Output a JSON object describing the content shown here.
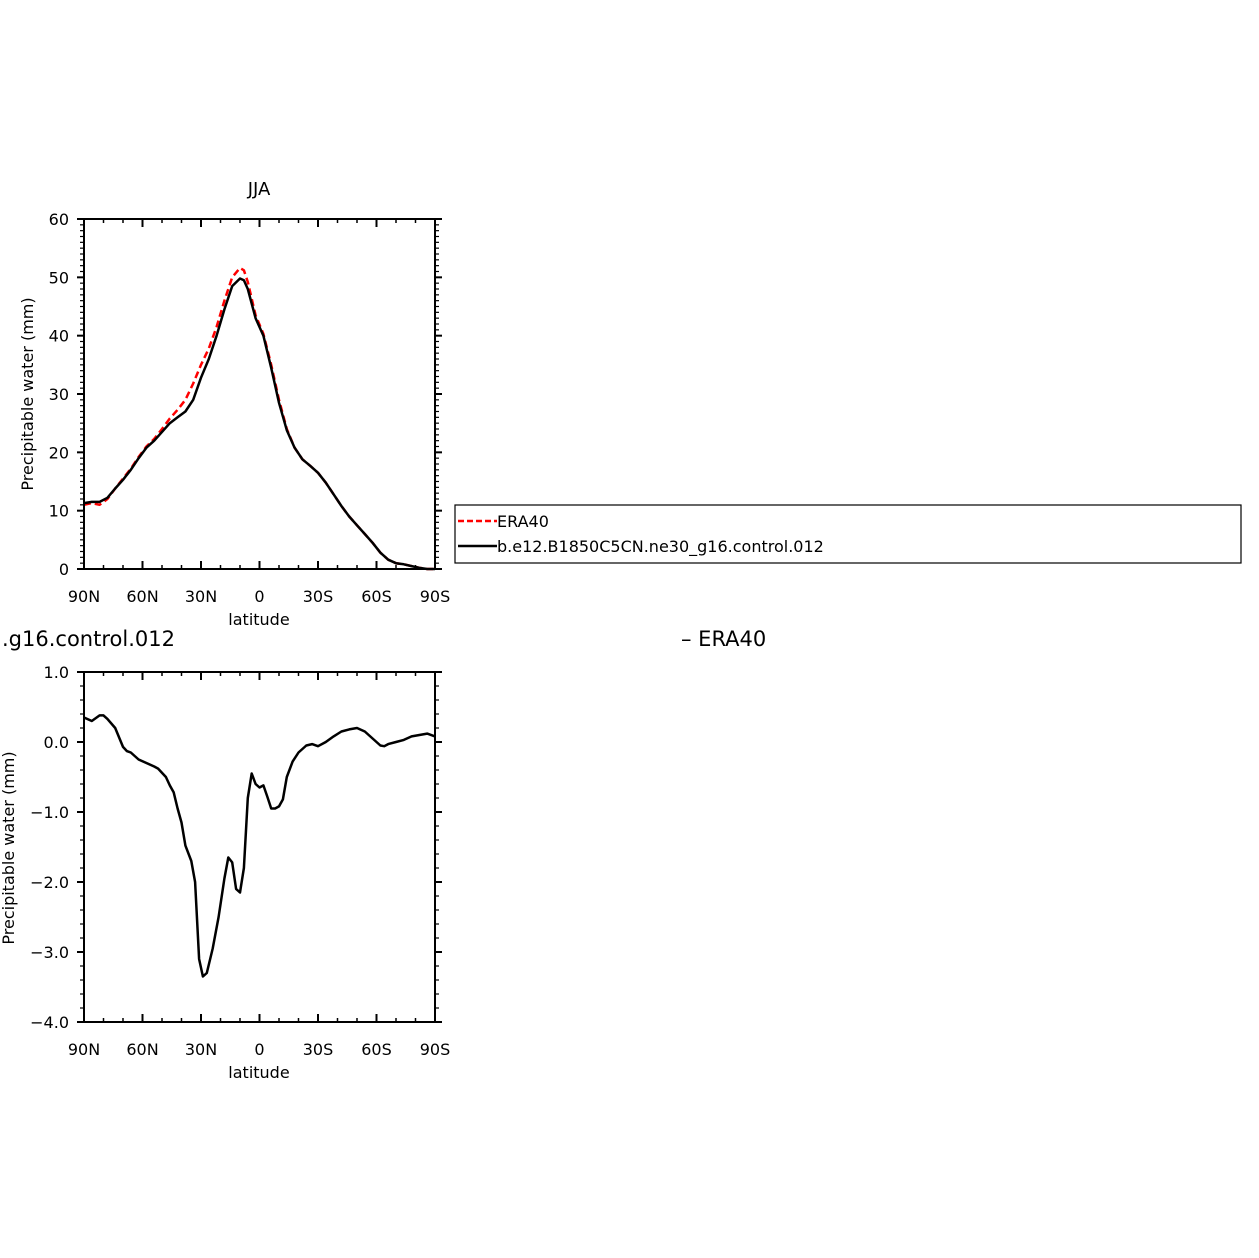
{
  "chart_data": [
    {
      "type": "line",
      "title": "JJA",
      "xlabel": "latitude",
      "ylabel": "Precipitable water (mm)",
      "xlim": [
        90,
        -90
      ],
      "ylim": [
        0,
        60
      ],
      "x_ticks": [
        90,
        60,
        30,
        0,
        -30,
        -60,
        -90
      ],
      "x_tick_labels": [
        "90N",
        "60N",
        "30N",
        "0",
        "30S",
        "60S",
        "90S"
      ],
      "y_ticks": [
        0,
        10,
        20,
        30,
        40,
        50,
        60
      ],
      "y_tick_labels": [
        "0",
        "10",
        "20",
        "30",
        "40",
        "50",
        "60"
      ],
      "grid": false,
      "legend_placement": "right",
      "series": [
        {
          "name": "ERA40",
          "color": "#ff0000",
          "dash": "dashed",
          "x": [
            90,
            86,
            82,
            78,
            74,
            70,
            66,
            62,
            58,
            54,
            50,
            46,
            42,
            38,
            34,
            30,
            26,
            22,
            18,
            14,
            10,
            8,
            6,
            2,
            -2,
            -6,
            -10,
            -14,
            -18,
            -22,
            -26,
            -30,
            -34,
            -38,
            -42,
            -46,
            -50,
            -54,
            -58,
            -62,
            -66,
            -70,
            -74,
            -78,
            -82,
            -86,
            -90
          ],
          "y": [
            11.0,
            11.3,
            11.0,
            12.0,
            13.8,
            15.5,
            17.2,
            19.2,
            21.0,
            22.3,
            24.0,
            25.8,
            27.3,
            29.0,
            31.8,
            35.0,
            37.8,
            41.5,
            46.0,
            50.0,
            51.6,
            51.2,
            49.2,
            43.5,
            40.3,
            35.0,
            29.0,
            24.0,
            20.8,
            18.8,
            17.7,
            16.5,
            14.8,
            12.8,
            10.8,
            9.0,
            7.5,
            6.0,
            4.5,
            2.8,
            1.6,
            1.0,
            0.8,
            0.5,
            0.2,
            0.0,
            0.0
          ]
        },
        {
          "name": "b.e12.B1850C5CN.ne30_g16.control.012",
          "color": "#000000",
          "dash": "solid",
          "x": [
            90,
            86,
            82,
            78,
            74,
            70,
            66,
            62,
            58,
            54,
            50,
            46,
            42,
            38,
            34,
            30,
            26,
            22,
            18,
            14,
            10,
            8,
            6,
            2,
            -2,
            -6,
            -10,
            -14,
            -18,
            -22,
            -26,
            -30,
            -34,
            -38,
            -42,
            -46,
            -50,
            -54,
            -58,
            -62,
            -66,
            -70,
            -74,
            -78,
            -82,
            -86,
            -90
          ],
          "y": [
            11.3,
            11.5,
            11.5,
            12.2,
            13.8,
            15.3,
            17.0,
            19.0,
            20.8,
            22.0,
            23.5,
            25.0,
            26.0,
            27.0,
            29.0,
            32.8,
            36.0,
            40.0,
            44.5,
            48.5,
            49.8,
            49.5,
            48.0,
            43.0,
            40.0,
            34.5,
            28.5,
            23.8,
            20.8,
            18.8,
            17.7,
            16.5,
            14.8,
            12.8,
            10.8,
            9.0,
            7.5,
            6.0,
            4.5,
            2.8,
            1.6,
            1.0,
            0.8,
            0.5,
            0.2,
            0.0,
            0.0
          ]
        }
      ]
    },
    {
      "type": "line",
      "title_fragment": ".g16.control.012",
      "title_right_fragment": "– ERA40",
      "xlabel": "latitude",
      "ylabel_fragment": "Precipitable water (mm)",
      "xlim": [
        90,
        -90
      ],
      "ylim": [
        -4.0,
        1.0
      ],
      "x_ticks": [
        90,
        60,
        30,
        0,
        -30,
        -60,
        -90
      ],
      "x_tick_labels": [
        "90N",
        "60N",
        "30N",
        "0",
        "30S",
        "60S",
        "90S"
      ],
      "y_ticks": [
        1.0,
        0.0,
        -1.0,
        -2.0,
        -3.0,
        -4.0
      ],
      "y_tick_labels": [
        "1.0",
        "0.0",
        "−1.0",
        "−2.0",
        "−3.0",
        "−4.0"
      ],
      "grid": false,
      "series": [
        {
          "color": "#000000",
          "dash": "solid",
          "x": [
            90,
            86,
            82,
            80,
            78,
            74,
            70,
            68,
            66,
            62,
            58,
            54,
            52,
            48,
            46,
            44,
            42,
            40,
            38,
            35,
            33,
            31,
            29,
            27,
            24,
            21,
            18,
            16,
            14,
            12,
            10,
            8,
            6,
            4,
            2,
            0,
            -2,
            -4,
            -6,
            -8,
            -10,
            -12,
            -14,
            -17,
            -20,
            -24,
            -27,
            -30,
            -34,
            -38,
            -42,
            -46,
            -50,
            -54,
            -58,
            -62,
            -64,
            -66,
            -70,
            -74,
            -78,
            -82,
            -86,
            -90
          ],
          "y": [
            0.35,
            0.3,
            0.38,
            0.38,
            0.33,
            0.2,
            -0.07,
            -0.13,
            -0.15,
            -0.25,
            -0.3,
            -0.35,
            -0.38,
            -0.5,
            -0.62,
            -0.72,
            -0.95,
            -1.15,
            -1.48,
            -1.7,
            -2.0,
            -3.1,
            -3.35,
            -3.3,
            -2.95,
            -2.5,
            -1.95,
            -1.65,
            -1.72,
            -2.1,
            -2.15,
            -1.8,
            -0.8,
            -0.45,
            -0.6,
            -0.65,
            -0.62,
            -0.78,
            -0.95,
            -0.95,
            -0.92,
            -0.82,
            -0.5,
            -0.28,
            -0.15,
            -0.05,
            -0.03,
            -0.06,
            0.0,
            0.08,
            0.15,
            0.18,
            0.2,
            0.15,
            0.05,
            -0.05,
            -0.06,
            -0.03,
            0.0,
            0.03,
            0.08,
            0.1,
            0.12,
            0.08
          ]
        }
      ]
    }
  ],
  "colors": {
    "era40": "#ff0000",
    "model": "#000000",
    "frame": "#000000",
    "background": "#ffffff"
  }
}
